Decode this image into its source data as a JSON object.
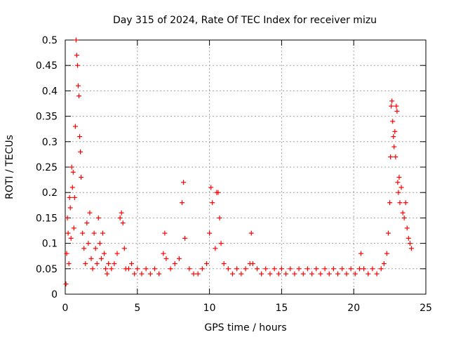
{
  "chart_data": {
    "type": "scatter",
    "title": "Day 315 of 2024, Rate Of TEC Index for receiver mizu",
    "xlabel": "GPS time / hours",
    "ylabel": "ROTI / TECUs",
    "xlim": [
      0,
      25
    ],
    "ylim": [
      0,
      0.5
    ],
    "xticks": [
      "0",
      "5",
      "10",
      "15",
      "20",
      "25"
    ],
    "yticks": [
      "0",
      "0.05",
      "0.1",
      "0.15",
      "0.2",
      "0.25",
      "0.3",
      "0.35",
      "0.4",
      "0.45",
      "0.5"
    ],
    "grid": true,
    "marker": "+",
    "color": "#ff0000",
    "series": [
      {
        "x": [
          0.05,
          0.1,
          0.15,
          0.2,
          0.25,
          0.3,
          0.35,
          0.4,
          0.45,
          0.5,
          0.55,
          0.6,
          0.65,
          0.7,
          0.75,
          0.8,
          0.85,
          0.9,
          0.95,
          1.0,
          1.05,
          1.1,
          1.2,
          1.3,
          1.4,
          1.5,
          1.6,
          1.7,
          1.8,
          1.9,
          2.0,
          2.1,
          2.2,
          2.3,
          2.4,
          2.5,
          2.6,
          2.7,
          2.8,
          2.9,
          3.0,
          3.2,
          3.4,
          3.6,
          3.8,
          3.9,
          4.0,
          4.1,
          4.2,
          4.4,
          4.6,
          4.8,
          5.0,
          5.3,
          5.6,
          5.9,
          6.2,
          6.5,
          6.8,
          6.9,
          7.0,
          7.3,
          7.6,
          7.9,
          8.1,
          8.2,
          8.3,
          8.6,
          8.9,
          9.2,
          9.5,
          9.8,
          10.0,
          10.1,
          10.2,
          10.4,
          10.5,
          10.6,
          10.7,
          10.8,
          11.0,
          11.3,
          11.6,
          11.9,
          12.2,
          12.5,
          12.8,
          12.9,
          13.0,
          13.3,
          13.6,
          13.9,
          14.2,
          14.5,
          14.8,
          15.0,
          15.3,
          15.6,
          15.9,
          16.2,
          16.5,
          16.8,
          17.1,
          17.4,
          17.7,
          18.0,
          18.3,
          18.6,
          18.9,
          19.2,
          19.5,
          19.8,
          20.1,
          20.4,
          20.5,
          20.7,
          21.0,
          21.3,
          21.6,
          21.9,
          22.1,
          22.3,
          22.4,
          22.5,
          22.55,
          22.6,
          22.65,
          22.7,
          22.75,
          22.8,
          22.85,
          22.9,
          22.95,
          23.0,
          23.05,
          23.1,
          23.15,
          23.2,
          23.3,
          23.4,
          23.5,
          23.6,
          23.7,
          23.8,
          23.9,
          24.0
        ],
        "y": [
          0.02,
          0.08,
          0.15,
          0.12,
          0.06,
          0.19,
          0.17,
          0.11,
          0.25,
          0.21,
          0.24,
          0.13,
          0.19,
          0.33,
          0.5,
          0.47,
          0.45,
          0.41,
          0.39,
          0.31,
          0.28,
          0.23,
          0.12,
          0.09,
          0.06,
          0.14,
          0.1,
          0.16,
          0.07,
          0.05,
          0.12,
          0.09,
          0.06,
          0.15,
          0.1,
          0.07,
          0.12,
          0.08,
          0.05,
          0.04,
          0.06,
          0.05,
          0.06,
          0.08,
          0.15,
          0.16,
          0.14,
          0.09,
          0.05,
          0.05,
          0.06,
          0.04,
          0.05,
          0.04,
          0.05,
          0.04,
          0.05,
          0.04,
          0.08,
          0.12,
          0.07,
          0.05,
          0.06,
          0.07,
          0.18,
          0.22,
          0.11,
          0.05,
          0.04,
          0.04,
          0.05,
          0.06,
          0.12,
          0.21,
          0.18,
          0.09,
          0.2,
          0.2,
          0.15,
          0.1,
          0.06,
          0.05,
          0.04,
          0.05,
          0.04,
          0.05,
          0.06,
          0.12,
          0.06,
          0.05,
          0.04,
          0.05,
          0.04,
          0.05,
          0.04,
          0.05,
          0.04,
          0.05,
          0.04,
          0.05,
          0.04,
          0.05,
          0.04,
          0.05,
          0.04,
          0.05,
          0.04,
          0.05,
          0.04,
          0.05,
          0.04,
          0.05,
          0.04,
          0.05,
          0.08,
          0.05,
          0.04,
          0.05,
          0.04,
          0.05,
          0.06,
          0.08,
          0.12,
          0.18,
          0.27,
          0.37,
          0.38,
          0.34,
          0.31,
          0.29,
          0.32,
          0.27,
          0.37,
          0.36,
          0.22,
          0.2,
          0.23,
          0.18,
          0.21,
          0.16,
          0.15,
          0.18,
          0.13,
          0.11,
          0.1,
          0.09
        ]
      }
    ]
  }
}
